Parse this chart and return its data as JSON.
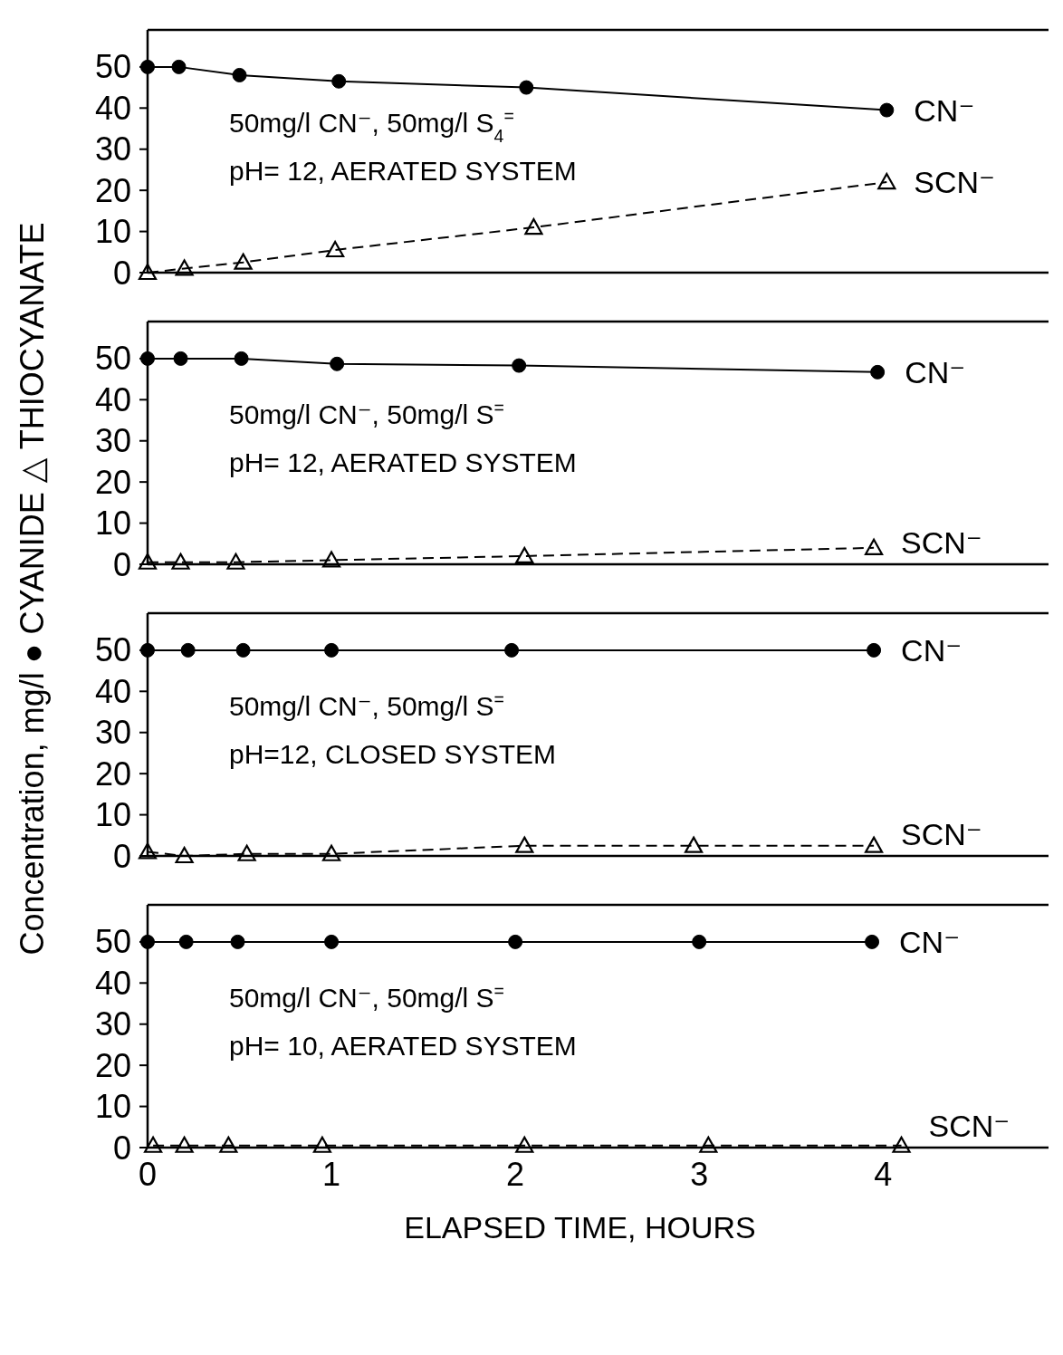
{
  "chart_data": [
    {
      "type": "line",
      "ylabel": "Concentration, mg/l  ● CYANIDE  △ THIOCYANATE",
      "xlim": [
        0,
        4.9
      ],
      "ylim": [
        0,
        59
      ],
      "yticks": [
        0,
        10,
        20,
        30,
        40,
        50
      ],
      "tick_labels": "y",
      "annotations": [
        "50mg/l CN⁻, 50mg/l S$_{4}$$^{=}$",
        "pH= 12, AERATED SYSTEM"
      ],
      "series": [
        {
          "name": "CN⁻",
          "color": "#000000",
          "marker": "circle",
          "line_style": "solid",
          "x": [
            0,
            0.17,
            0.5,
            1.04,
            2.06,
            4.02
          ],
          "values": [
            50,
            50,
            48,
            46.5,
            45,
            39.5
          ]
        },
        {
          "name": "SCN⁻",
          "color": "#000000",
          "marker": "triangle",
          "line_style": "dashed",
          "x": [
            0,
            0.2,
            0.52,
            1.02,
            2.1,
            4.02
          ],
          "values": [
            0,
            1,
            2.5,
            5.5,
            11,
            22
          ]
        }
      ]
    },
    {
      "type": "line",
      "xlim": [
        0,
        4.9
      ],
      "ylim": [
        0,
        59
      ],
      "yticks": [
        0,
        10,
        20,
        30,
        40,
        50
      ],
      "tick_labels": "y",
      "annotations": [
        "50mg/l CN⁻, 50mg/l S$^{=}$",
        "pH= 12, AERATED SYSTEM"
      ],
      "series": [
        {
          "name": "CN⁻",
          "color": "#000000",
          "marker": "circle",
          "line_style": "solid",
          "x": [
            0,
            0.18,
            0.51,
            1.03,
            2.02,
            3.97
          ],
          "values": [
            50,
            50,
            50,
            48.7,
            48.3,
            46.7
          ]
        },
        {
          "name": "SCN⁻",
          "color": "#000000",
          "marker": "triangle",
          "line_style": "dashed",
          "x": [
            0,
            0.18,
            0.48,
            1.0,
            2.05,
            3.95
          ],
          "values": [
            0.5,
            0.5,
            0.5,
            1,
            2,
            4
          ]
        }
      ]
    },
    {
      "type": "line",
      "xlim": [
        0,
        4.9
      ],
      "ylim": [
        0,
        59
      ],
      "yticks": [
        0,
        10,
        20,
        30,
        40,
        50
      ],
      "tick_labels": "y",
      "annotations": [
        "50mg/l CN⁻, 50mg/l S$^{=}$",
        "pH=12, CLOSED SYSTEM"
      ],
      "series": [
        {
          "name": "CN⁻",
          "color": "#000000",
          "marker": "circle",
          "line_style": "solid",
          "x": [
            0,
            0.22,
            0.52,
            1.0,
            1.98,
            3.95
          ],
          "values": [
            50,
            50,
            50,
            50,
            50,
            50
          ]
        },
        {
          "name": "SCN⁻",
          "color": "#000000",
          "marker": "triangle",
          "line_style": "dashed",
          "x": [
            0,
            0.2,
            0.54,
            1.0,
            2.05,
            2.97,
            3.95
          ],
          "values": [
            1,
            0,
            0.5,
            0.5,
            2.5,
            2.5,
            2.5
          ]
        }
      ]
    },
    {
      "type": "line",
      "xlabel": "ELAPSED TIME, HOURS",
      "xlim": [
        0,
        4.9
      ],
      "ylim": [
        0,
        59
      ],
      "xticks": [
        0,
        1,
        2,
        3,
        4
      ],
      "yticks": [
        0,
        10,
        20,
        30,
        40,
        50
      ],
      "annotations": [
        "50mg/l CN⁻, 50mg/l S$^{=}$",
        "pH= 10, AERATED SYSTEM"
      ],
      "series": [
        {
          "name": "CN⁻",
          "color": "#000000",
          "marker": "circle",
          "line_style": "solid",
          "x": [
            0,
            0.21,
            0.49,
            1.0,
            2.0,
            3.0,
            3.94
          ],
          "values": [
            50,
            50,
            50,
            50,
            50,
            50,
            50
          ]
        },
        {
          "name": "SCN⁻",
          "color": "#000000",
          "marker": "triangle",
          "line_style": "dashed",
          "x": [
            0.03,
            0.2,
            0.44,
            0.95,
            2.05,
            3.05,
            4.1
          ],
          "values": [
            0.5,
            0.5,
            0.5,
            0.5,
            0.5,
            0.5,
            0.5
          ]
        }
      ]
    }
  ]
}
